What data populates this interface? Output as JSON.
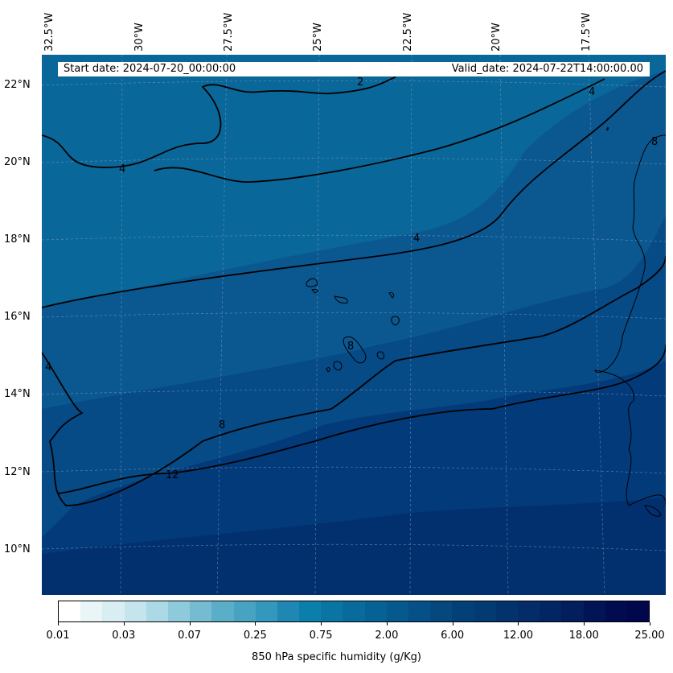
{
  "map": {
    "start_date": "Start date: 2024-07-20_00:00:00",
    "valid_date": "Valid_date: 2024-07-22T14:00:00.00",
    "longitude_labels": [
      "32.5°W",
      "30°W",
      "27.5°W",
      "25°W",
      "22.5°W",
      "20°W",
      "17.5°W"
    ],
    "latitude_labels": [
      "22°N",
      "20°N",
      "18°N",
      "16°N",
      "14°N",
      "12°N",
      "10°N"
    ],
    "contour_labels": [
      "2",
      "4",
      "4",
      "4",
      "4",
      "8",
      "8",
      "8",
      "12"
    ],
    "colors": {
      "dry_blue": "#0a6799",
      "mid_blue": "#0b5891",
      "moist_blue": "#053f80",
      "wet_blue": "#033375",
      "grid": "#8fa6c0"
    }
  },
  "colorbar": {
    "label": "850 hPa specific humidity (g/Kg)",
    "ticks": [
      "0.01",
      "0.03",
      "0.07",
      "0.25",
      "0.75",
      "2.00",
      "6.00",
      "12.00",
      "18.00",
      "25.00"
    ],
    "colors": [
      "#ffffff",
      "#eaf5f8",
      "#d8eef3",
      "#c4e5ee",
      "#abd9e6",
      "#8fcadc",
      "#75bcd2",
      "#5baec8",
      "#47a3c1",
      "#3497bc",
      "#2087b2",
      "#0b7fab",
      "#0a74a3",
      "#086b9c",
      "#066294",
      "#05598d",
      "#055086",
      "#04487e",
      "#044078",
      "#033a72",
      "#03336d",
      "#032c68",
      "#022563",
      "#021e5c",
      "#011556",
      "#010c50",
      "#00074a"
    ]
  }
}
